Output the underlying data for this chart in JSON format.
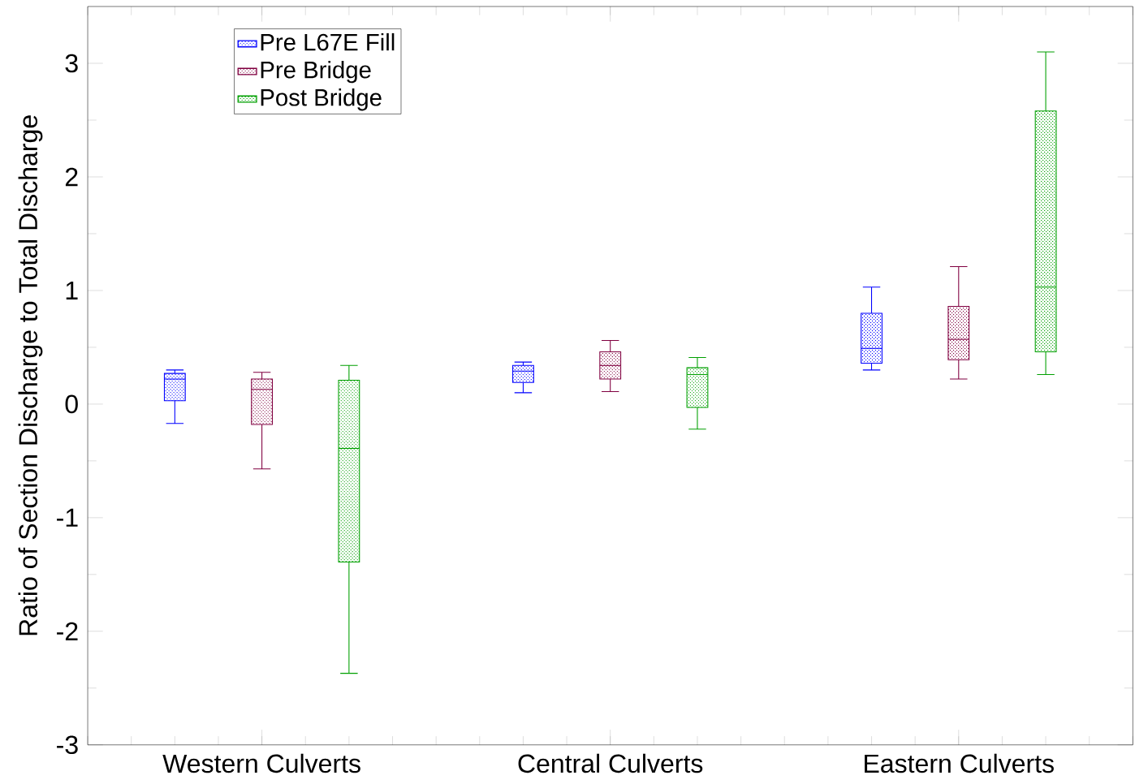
{
  "chart_data": {
    "type": "box",
    "ylabel": "Ratio of Section Discharge to Total Discharge",
    "categories": [
      "Western Culverts",
      "Central Culverts",
      "Eastern Culverts"
    ],
    "ylim": [
      -3,
      3.5
    ],
    "yticks": [
      -3,
      -2,
      -1,
      0,
      1,
      2,
      3
    ],
    "legend": "top left",
    "grid": false,
    "series": [
      {
        "name": "Pre L67E Fill",
        "color": "#0000ff",
        "boxes": [
          {
            "low": -0.17,
            "q1": 0.03,
            "median": 0.22,
            "q3": 0.27,
            "high": 0.3
          },
          {
            "low": 0.1,
            "q1": 0.19,
            "median": 0.29,
            "q3": 0.34,
            "high": 0.37
          },
          {
            "low": 0.3,
            "q1": 0.36,
            "median": 0.49,
            "q3": 0.8,
            "high": 1.03
          }
        ]
      },
      {
        "name": "Pre Bridge",
        "color": "#800040",
        "boxes": [
          {
            "low": -0.57,
            "q1": -0.18,
            "median": 0.13,
            "q3": 0.22,
            "high": 0.28
          },
          {
            "low": 0.11,
            "q1": 0.22,
            "median": 0.34,
            "q3": 0.46,
            "high": 0.56
          },
          {
            "low": 0.22,
            "q1": 0.39,
            "median": 0.57,
            "q3": 0.86,
            "high": 1.21
          }
        ]
      },
      {
        "name": "Post Bridge",
        "color": "#00a000",
        "boxes": [
          {
            "low": -2.37,
            "q1": -1.39,
            "median": -0.39,
            "q3": 0.21,
            "high": 0.34
          },
          {
            "low": -0.22,
            "q1": -0.03,
            "median": 0.26,
            "q3": 0.32,
            "high": 0.41
          },
          {
            "low": 0.26,
            "q1": 0.46,
            "median": 1.03,
            "q3": 2.58,
            "high": 3.1
          }
        ]
      }
    ]
  }
}
